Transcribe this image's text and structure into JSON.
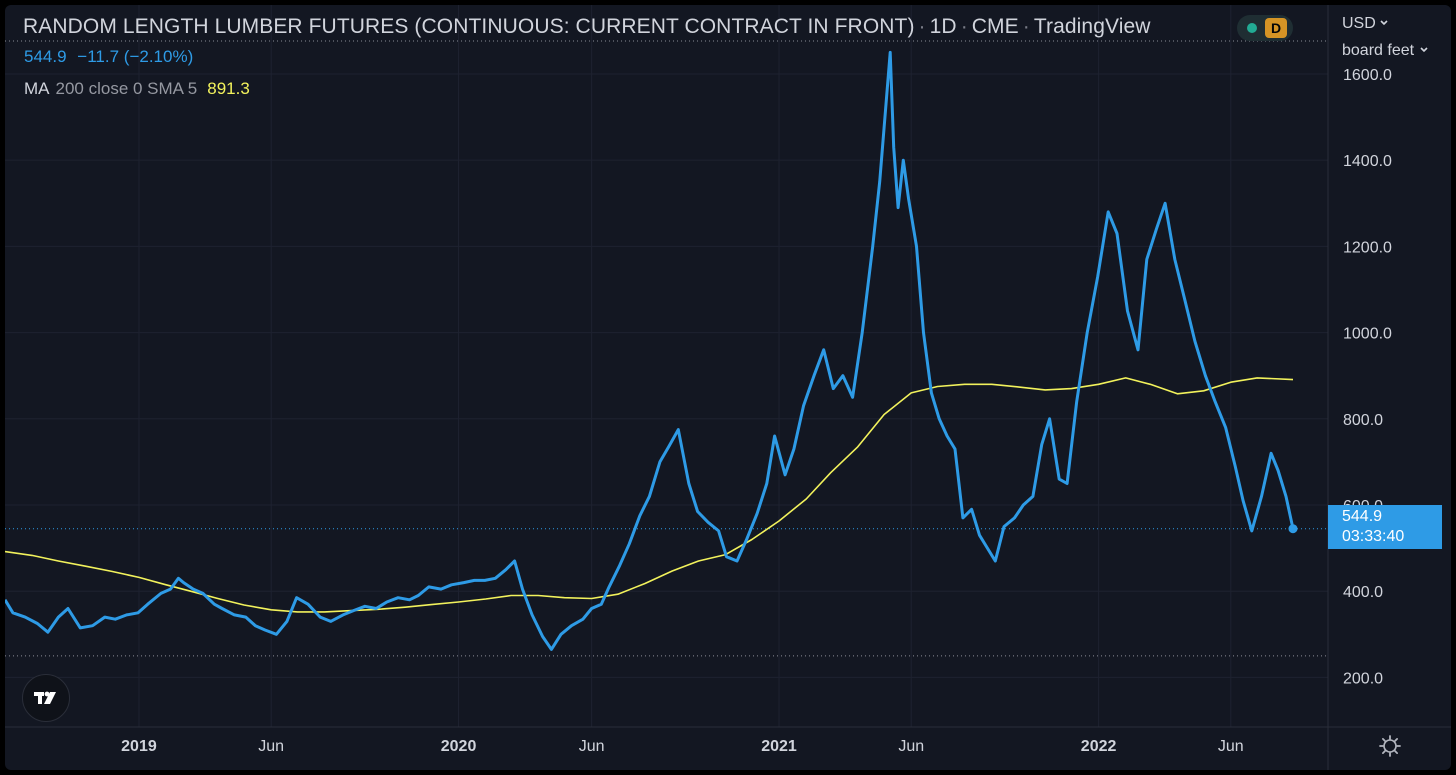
{
  "header": {
    "title": "RANDOM LENGTH LUMBER FUTURES (CONTINUOUS: CURRENT CONTRACT IN FRONT)",
    "interval": "1D",
    "exchange": "CME",
    "source": "TradingView",
    "status_badge": "D"
  },
  "price_row": {
    "last": "544.9",
    "change": "−11.7",
    "change_pct": "(−2.10%)"
  },
  "indicator": {
    "name": "MA",
    "params": "200 close 0 SMA 5",
    "value": "891.3"
  },
  "scale": {
    "currency": "USD",
    "unit": "board feet"
  },
  "price_label": {
    "price": "544.9",
    "countdown": "03:33:40"
  },
  "colors": {
    "background": "#131722",
    "price_line": "#2e9be6",
    "ma_line": "#f2f25c",
    "grid": "#1e2230",
    "text": "#d1d4dc"
  },
  "icons": [
    "chevron-down-icon",
    "tradingview-logo-icon",
    "gear-icon"
  ],
  "chart_data": {
    "type": "line",
    "title": "RANDOM LENGTH LUMBER FUTURES (CONTINUOUS: CURRENT CONTRACT IN FRONT)",
    "ylabel": "board feet",
    "ylim": [
      85,
      1760
    ],
    "xlim": [
      "2018-08-01",
      "2022-09-20"
    ],
    "grid": true,
    "y_ticks": [
      200,
      400,
      600,
      800,
      1000,
      1200,
      1400,
      1600
    ],
    "y_tick_labels": [
      "200.0",
      "400.0",
      "600.0",
      "800.0",
      "1000.0",
      "1200.0",
      "1400.0",
      "1600.0"
    ],
    "x_ticks": [
      "2019-01-01",
      "2019-06-01",
      "2020-01-01",
      "2020-06-01",
      "2021-01-01",
      "2021-06-01",
      "2022-01-01",
      "2022-06-01"
    ],
    "x_tick_labels": [
      "2019",
      "Jun",
      "2020",
      "Jun",
      "2021",
      "Jun",
      "2022",
      "Jun"
    ],
    "reference_lines": [
      544.9,
      250
    ],
    "series": [
      {
        "name": "RANDOM LENGTH LUMBER FUTURES",
        "points": [
          [
            "2018-08-01",
            380
          ],
          [
            "2018-08-10",
            350
          ],
          [
            "2018-08-24",
            340
          ],
          [
            "2018-09-07",
            325
          ],
          [
            "2018-09-19",
            305
          ],
          [
            "2018-10-01",
            340
          ],
          [
            "2018-10-12",
            360
          ],
          [
            "2018-10-26",
            315
          ],
          [
            "2018-11-09",
            320
          ],
          [
            "2018-11-23",
            340
          ],
          [
            "2018-12-05",
            335
          ],
          [
            "2018-12-18",
            345
          ],
          [
            "2018-12-31",
            350
          ],
          [
            "2019-01-11",
            370
          ],
          [
            "2019-01-26",
            395
          ],
          [
            "2019-02-06",
            405
          ],
          [
            "2019-02-15",
            430
          ],
          [
            "2019-02-21",
            420
          ],
          [
            "2019-03-04",
            405
          ],
          [
            "2019-03-15",
            395
          ],
          [
            "2019-03-28",
            370
          ],
          [
            "2019-04-06",
            360
          ],
          [
            "2019-04-20",
            345
          ],
          [
            "2019-05-03",
            340
          ],
          [
            "2019-05-14",
            320
          ],
          [
            "2019-05-25",
            310
          ],
          [
            "2019-06-07",
            300
          ],
          [
            "2019-06-19",
            330
          ],
          [
            "2019-06-30",
            385
          ],
          [
            "2019-07-13",
            370
          ],
          [
            "2019-07-27",
            340
          ],
          [
            "2019-08-08",
            330
          ],
          [
            "2019-08-22",
            345
          ],
          [
            "2019-09-03",
            355
          ],
          [
            "2019-09-16",
            365
          ],
          [
            "2019-09-29",
            360
          ],
          [
            "2019-10-11",
            375
          ],
          [
            "2019-10-24",
            385
          ],
          [
            "2019-11-06",
            380
          ],
          [
            "2019-11-16",
            390
          ],
          [
            "2019-11-28",
            410
          ],
          [
            "2019-12-12",
            405
          ],
          [
            "2019-12-24",
            415
          ],
          [
            "2020-01-07",
            420
          ],
          [
            "2020-01-19",
            425
          ],
          [
            "2020-01-31",
            425
          ],
          [
            "2020-02-12",
            430
          ],
          [
            "2020-02-24",
            450
          ],
          [
            "2020-03-05",
            470
          ],
          [
            "2020-03-14",
            405
          ],
          [
            "2020-03-25",
            345
          ],
          [
            "2020-04-06",
            295
          ],
          [
            "2020-04-16",
            265
          ],
          [
            "2020-04-27",
            300
          ],
          [
            "2020-05-09",
            320
          ],
          [
            "2020-05-22",
            335
          ],
          [
            "2020-06-01",
            360
          ],
          [
            "2020-06-12",
            370
          ],
          [
            "2020-06-21",
            410
          ],
          [
            "2020-07-03",
            460
          ],
          [
            "2020-07-14",
            510
          ],
          [
            "2020-07-26",
            575
          ],
          [
            "2020-08-06",
            620
          ],
          [
            "2020-08-18",
            700
          ],
          [
            "2020-08-28",
            735
          ],
          [
            "2020-09-08",
            775
          ],
          [
            "2020-09-20",
            650
          ],
          [
            "2020-09-30",
            585
          ],
          [
            "2020-10-12",
            560
          ],
          [
            "2020-10-24",
            540
          ],
          [
            "2020-11-02",
            480
          ],
          [
            "2020-11-14",
            470
          ],
          [
            "2020-11-25",
            520
          ],
          [
            "2020-12-07",
            580
          ],
          [
            "2020-12-18",
            650
          ],
          [
            "2020-12-27",
            760
          ],
          [
            "2021-01-08",
            670
          ],
          [
            "2021-01-18",
            730
          ],
          [
            "2021-01-29",
            830
          ],
          [
            "2021-02-10",
            900
          ],
          [
            "2021-02-21",
            960
          ],
          [
            "2021-03-04",
            870
          ],
          [
            "2021-03-15",
            900
          ],
          [
            "2021-03-26",
            850
          ],
          [
            "2021-04-06",
            1000
          ],
          [
            "2021-04-18",
            1200
          ],
          [
            "2021-04-26",
            1350
          ],
          [
            "2021-05-04",
            1550
          ],
          [
            "2021-05-08",
            1650
          ],
          [
            "2021-05-12",
            1430
          ],
          [
            "2021-05-17",
            1290
          ],
          [
            "2021-05-23",
            1400
          ],
          [
            "2021-05-29",
            1310
          ],
          [
            "2021-06-07",
            1200
          ],
          [
            "2021-06-15",
            1000
          ],
          [
            "2021-06-24",
            860
          ],
          [
            "2021-07-03",
            800
          ],
          [
            "2021-07-12",
            760
          ],
          [
            "2021-07-21",
            730
          ],
          [
            "2021-07-30",
            570
          ],
          [
            "2021-08-09",
            590
          ],
          [
            "2021-08-18",
            530
          ],
          [
            "2021-08-27",
            500
          ],
          [
            "2021-09-05",
            470
          ],
          [
            "2021-09-15",
            550
          ],
          [
            "2021-09-27",
            570
          ],
          [
            "2021-10-07",
            600
          ],
          [
            "2021-10-18",
            620
          ],
          [
            "2021-10-28",
            740
          ],
          [
            "2021-11-06",
            800
          ],
          [
            "2021-11-17",
            660
          ],
          [
            "2021-11-26",
            650
          ],
          [
            "2021-12-07",
            840
          ],
          [
            "2021-12-19",
            1000
          ],
          [
            "2021-12-31",
            1130
          ],
          [
            "2022-01-12",
            1280
          ],
          [
            "2022-01-22",
            1230
          ],
          [
            "2022-02-03",
            1050
          ],
          [
            "2022-02-15",
            960
          ],
          [
            "2022-02-25",
            1170
          ],
          [
            "2022-03-08",
            1240
          ],
          [
            "2022-03-18",
            1300
          ],
          [
            "2022-03-29",
            1170
          ],
          [
            "2022-04-09",
            1080
          ],
          [
            "2022-04-21",
            980
          ],
          [
            "2022-05-03",
            900
          ],
          [
            "2022-05-14",
            840
          ],
          [
            "2022-05-26",
            780
          ],
          [
            "2022-06-06",
            690
          ],
          [
            "2022-06-15",
            610
          ],
          [
            "2022-06-25",
            540
          ],
          [
            "2022-07-06",
            620
          ],
          [
            "2022-07-17",
            720
          ],
          [
            "2022-07-25",
            680
          ],
          [
            "2022-08-03",
            620
          ],
          [
            "2022-08-11",
            545
          ]
        ]
      },
      {
        "name": "MA 200 close 0 SMA 5",
        "points": [
          [
            "2018-08-01",
            492
          ],
          [
            "2018-09-01",
            483
          ],
          [
            "2018-10-01",
            470
          ],
          [
            "2018-11-01",
            458
          ],
          [
            "2018-12-01",
            446
          ],
          [
            "2019-01-01",
            432
          ],
          [
            "2019-02-01",
            415
          ],
          [
            "2019-03-01",
            400
          ],
          [
            "2019-04-01",
            383
          ],
          [
            "2019-05-01",
            368
          ],
          [
            "2019-06-01",
            357
          ],
          [
            "2019-07-01",
            352
          ],
          [
            "2019-08-01",
            352
          ],
          [
            "2019-09-01",
            355
          ],
          [
            "2019-10-01",
            358
          ],
          [
            "2019-11-01",
            363
          ],
          [
            "2019-12-01",
            369
          ],
          [
            "2020-01-01",
            375
          ],
          [
            "2020-02-01",
            382
          ],
          [
            "2020-03-01",
            390
          ],
          [
            "2020-04-01",
            390
          ],
          [
            "2020-05-01",
            385
          ],
          [
            "2020-06-01",
            383
          ],
          [
            "2020-07-01",
            393
          ],
          [
            "2020-08-01",
            418
          ],
          [
            "2020-09-01",
            447
          ],
          [
            "2020-10-01",
            470
          ],
          [
            "2020-11-01",
            485
          ],
          [
            "2020-12-01",
            520
          ],
          [
            "2021-01-01",
            563
          ],
          [
            "2021-02-01",
            614
          ],
          [
            "2021-03-01",
            675
          ],
          [
            "2021-04-01",
            735
          ],
          [
            "2021-05-01",
            810
          ],
          [
            "2021-06-01",
            860
          ],
          [
            "2021-07-01",
            875
          ],
          [
            "2021-08-01",
            880
          ],
          [
            "2021-09-01",
            880
          ],
          [
            "2021-10-01",
            874
          ],
          [
            "2021-11-01",
            867
          ],
          [
            "2021-12-01",
            870
          ],
          [
            "2022-01-01",
            880
          ],
          [
            "2022-02-01",
            895
          ],
          [
            "2022-03-01",
            880
          ],
          [
            "2022-04-01",
            858
          ],
          [
            "2022-05-01",
            865
          ],
          [
            "2022-06-01",
            885
          ],
          [
            "2022-07-01",
            895
          ],
          [
            "2022-08-11",
            891
          ]
        ]
      }
    ]
  }
}
